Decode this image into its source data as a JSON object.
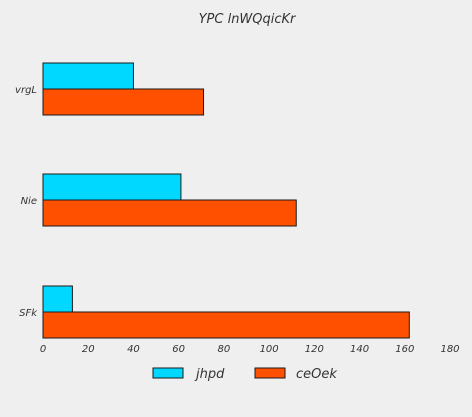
{
  "chart_data": {
    "type": "bar",
    "orientation": "horizontal",
    "title": "YPC lnWQqicKr",
    "xlabel": "",
    "ylabel": "",
    "categories": [
      "vrgL",
      "Nie",
      "SFk"
    ],
    "series": [
      {
        "name": "jhpd",
        "values": [
          40,
          61,
          13
        ],
        "color": "#00d8ff"
      },
      {
        "name": "ceOek",
        "values": [
          71,
          112,
          162
        ],
        "color": "#ff5000"
      }
    ],
    "xlim": [
      0,
      180
    ],
    "xticks": [
      0,
      20,
      40,
      60,
      80,
      100,
      120,
      140,
      160,
      180
    ],
    "grid": false,
    "legend_position": "bottom"
  }
}
